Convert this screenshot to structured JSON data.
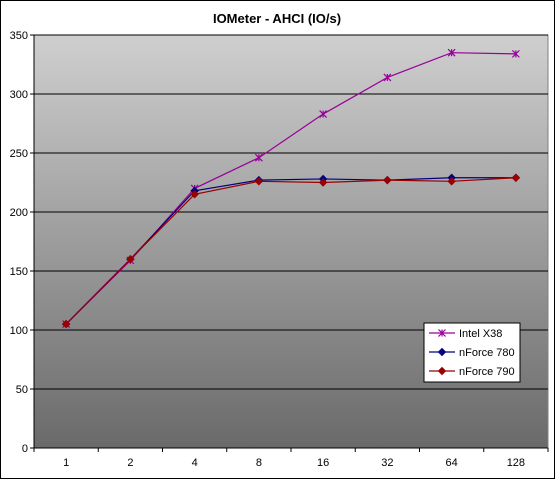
{
  "chart_data": {
    "type": "line",
    "title": "IOMeter - AHCI (IO/s)",
    "xlabel": "",
    "ylabel": "",
    "categories": [
      "1",
      "2",
      "4",
      "8",
      "16",
      "32",
      "64",
      "128"
    ],
    "ylim": [
      0,
      350
    ],
    "yticks": [
      0,
      50,
      100,
      150,
      200,
      250,
      300,
      350
    ],
    "grid": true,
    "legend_position": "bottom-right",
    "plot_background": "gradient grey (light top to dark bottom)",
    "series": [
      {
        "name": "Intel X38",
        "color": "#990099",
        "marker": "star",
        "values": [
          105,
          159,
          220,
          246,
          283,
          314,
          335,
          334
        ]
      },
      {
        "name": "nForce 780",
        "color": "#000080",
        "marker": "diamond",
        "values": [
          105,
          160,
          218,
          227,
          228,
          227,
          229,
          229
        ]
      },
      {
        "name": "nForce 790",
        "color": "#990000",
        "marker": "diamond",
        "values": [
          105,
          160,
          215,
          226,
          225,
          227,
          226,
          229
        ]
      }
    ]
  }
}
